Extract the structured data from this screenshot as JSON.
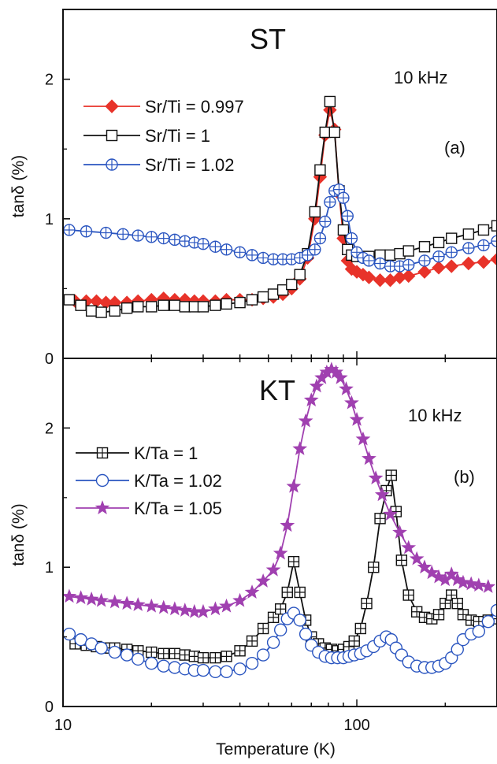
{
  "figure": {
    "xlabel": "Temperature (K)",
    "x_tick_labels": [
      "10",
      "100"
    ]
  },
  "chart_data": [
    {
      "type": "line",
      "panel": "(a)",
      "title": "ST",
      "annotation": "10 kHz",
      "ylabel": "tanδ (%)",
      "xscale": "log",
      "xlim": [
        10,
        300
      ],
      "ylim": [
        0,
        2.5
      ],
      "y_tick_labels": [
        "0",
        "1",
        "2"
      ],
      "y_ticks": [
        0,
        1,
        2
      ],
      "legend_position": "upper-left",
      "series": [
        {
          "name": "Sr/Ti = 0.997",
          "color": "#e8332a",
          "marker": "diamond-filled",
          "x": [
            11,
            12,
            13,
            14,
            15,
            16.5,
            18,
            20,
            22,
            24,
            26,
            28,
            30,
            33,
            36,
            40,
            44,
            48,
            52,
            56,
            60,
            64,
            68,
            72,
            75,
            78,
            81,
            84,
            87,
            90,
            93,
            96,
            100,
            105,
            110,
            120,
            130,
            140,
            150,
            170,
            190,
            210,
            240,
            270,
            300
          ],
          "y": [
            0.41,
            0.41,
            0.41,
            0.4,
            0.4,
            0.4,
            0.41,
            0.42,
            0.43,
            0.42,
            0.42,
            0.41,
            0.41,
            0.41,
            0.42,
            0.42,
            0.42,
            0.43,
            0.44,
            0.46,
            0.5,
            0.57,
            0.72,
            1.0,
            1.3,
            1.6,
            1.78,
            1.64,
            1.18,
            0.86,
            0.7,
            0.64,
            0.62,
            0.6,
            0.58,
            0.56,
            0.56,
            0.58,
            0.59,
            0.62,
            0.65,
            0.66,
            0.68,
            0.69,
            0.71
          ]
        },
        {
          "name": "Sr/Ti = 1",
          "color": "#111111",
          "marker": "square-open",
          "x": [
            10.5,
            11.5,
            12.5,
            13.5,
            15,
            16.5,
            18,
            20,
            22,
            24,
            26,
            28,
            30,
            33,
            36,
            40,
            44,
            48,
            52,
            56,
            60,
            64,
            68,
            72,
            75,
            78,
            81,
            84,
            87,
            90,
            93,
            96,
            100,
            105,
            110,
            120,
            130,
            140,
            150,
            170,
            190,
            210,
            240,
            270,
            300
          ],
          "y": [
            0.42,
            0.38,
            0.34,
            0.33,
            0.34,
            0.36,
            0.37,
            0.37,
            0.38,
            0.38,
            0.37,
            0.37,
            0.37,
            0.38,
            0.39,
            0.4,
            0.42,
            0.44,
            0.46,
            0.49,
            0.53,
            0.6,
            0.75,
            1.05,
            1.35,
            1.62,
            1.84,
            1.62,
            1.2,
            0.92,
            0.78,
            0.74,
            0.73,
            0.73,
            0.73,
            0.74,
            0.74,
            0.75,
            0.77,
            0.8,
            0.83,
            0.86,
            0.89,
            0.92,
            0.95
          ]
        },
        {
          "name": "Sr/Ti = 1.02",
          "color": "#2a55c0",
          "marker": "circle-plus",
          "x": [
            10.5,
            12,
            14,
            16,
            18,
            20,
            22,
            24,
            26,
            28,
            30,
            33,
            36,
            40,
            44,
            48,
            52,
            56,
            60,
            64,
            68,
            72,
            75,
            78,
            81,
            84,
            87,
            90,
            93,
            96,
            100,
            105,
            110,
            120,
            130,
            140,
            150,
            170,
            190,
            210,
            240,
            270,
            300
          ],
          "y": [
            0.92,
            0.91,
            0.9,
            0.89,
            0.88,
            0.87,
            0.86,
            0.85,
            0.84,
            0.83,
            0.82,
            0.8,
            0.78,
            0.76,
            0.74,
            0.72,
            0.71,
            0.71,
            0.71,
            0.72,
            0.74,
            0.78,
            0.86,
            0.98,
            1.12,
            1.2,
            1.21,
            1.15,
            1.02,
            0.86,
            0.76,
            0.72,
            0.7,
            0.68,
            0.66,
            0.66,
            0.67,
            0.7,
            0.73,
            0.76,
            0.79,
            0.81,
            0.84
          ]
        }
      ]
    },
    {
      "type": "line",
      "panel": "(b)",
      "title": "KT",
      "annotation": "10 kHz",
      "ylabel": "tanδ (%)",
      "xscale": "log",
      "xlim": [
        10,
        300
      ],
      "ylim": [
        0,
        2.5
      ],
      "y_tick_labels": [
        "0",
        "1",
        "2"
      ],
      "y_ticks": [
        0,
        1,
        2
      ],
      "legend_position": "upper-left",
      "series": [
        {
          "name": "K/Ta = 1",
          "color": "#111111",
          "marker": "square-plus",
          "x": [
            11,
            12,
            13,
            14,
            15,
            16.5,
            18,
            20,
            22,
            24,
            26,
            28,
            30,
            33,
            36,
            40,
            44,
            48,
            52,
            55,
            58,
            61,
            64,
            67,
            70,
            74,
            78,
            82,
            86,
            90,
            94,
            98,
            103,
            108,
            114,
            120,
            126,
            131,
            136,
            142,
            150,
            160,
            170,
            180,
            190,
            200,
            210,
            220,
            230,
            245,
            260,
            280,
            300
          ],
          "y": [
            0.45,
            0.44,
            0.43,
            0.42,
            0.42,
            0.41,
            0.4,
            0.39,
            0.38,
            0.38,
            0.37,
            0.36,
            0.35,
            0.35,
            0.36,
            0.4,
            0.47,
            0.56,
            0.64,
            0.7,
            0.82,
            1.04,
            0.82,
            0.62,
            0.5,
            0.45,
            0.42,
            0.41,
            0.4,
            0.41,
            0.43,
            0.47,
            0.56,
            0.74,
            1.0,
            1.35,
            1.55,
            1.66,
            1.4,
            1.05,
            0.8,
            0.68,
            0.64,
            0.63,
            0.66,
            0.74,
            0.8,
            0.74,
            0.66,
            0.62,
            0.61,
            0.62,
            0.63
          ]
        },
        {
          "name": "K/Ta = 1.02",
          "color": "#2a55c0",
          "marker": "circle-open",
          "x": [
            10.5,
            11.5,
            12.5,
            13.5,
            15,
            16.5,
            18,
            20,
            22,
            24,
            26,
            28,
            30,
            33,
            36,
            40,
            44,
            48,
            52,
            55,
            58,
            61,
            64,
            67,
            70,
            74,
            78,
            82,
            86,
            90,
            94,
            98,
            103,
            108,
            114,
            120,
            126,
            131,
            136,
            142,
            150,
            160,
            170,
            180,
            190,
            200,
            210,
            220,
            230,
            245,
            260,
            280,
            300
          ],
          "y": [
            0.52,
            0.48,
            0.45,
            0.42,
            0.39,
            0.37,
            0.34,
            0.31,
            0.29,
            0.28,
            0.27,
            0.26,
            0.26,
            0.25,
            0.25,
            0.27,
            0.31,
            0.37,
            0.46,
            0.55,
            0.63,
            0.67,
            0.62,
            0.52,
            0.44,
            0.39,
            0.36,
            0.35,
            0.35,
            0.35,
            0.36,
            0.37,
            0.38,
            0.4,
            0.43,
            0.47,
            0.5,
            0.48,
            0.42,
            0.37,
            0.32,
            0.29,
            0.28,
            0.28,
            0.29,
            0.31,
            0.35,
            0.41,
            0.48,
            0.52,
            0.54,
            0.61,
            0.69
          ]
        },
        {
          "name": "K/Ta = 1.05",
          "color": "#a040b0",
          "marker": "star-filled",
          "x": [
            10.5,
            11.5,
            12.5,
            13.5,
            15,
            16.5,
            18,
            20,
            22,
            24,
            26,
            28,
            30,
            33,
            36,
            40,
            44,
            48,
            52,
            55,
            58,
            61,
            64,
            67,
            70,
            73,
            76,
            79,
            82,
            85,
            88,
            92,
            96,
            100,
            105,
            110,
            116,
            122,
            130,
            140,
            150,
            160,
            170,
            180,
            190,
            200,
            210,
            220,
            230,
            245,
            260,
            280
          ],
          "y": [
            0.79,
            0.78,
            0.77,
            0.76,
            0.75,
            0.74,
            0.73,
            0.72,
            0.71,
            0.7,
            0.69,
            0.68,
            0.68,
            0.7,
            0.72,
            0.76,
            0.82,
            0.9,
            0.98,
            1.1,
            1.3,
            1.58,
            1.85,
            2.05,
            2.2,
            2.3,
            2.36,
            2.4,
            2.42,
            2.4,
            2.36,
            2.28,
            2.18,
            2.06,
            1.92,
            1.78,
            1.64,
            1.52,
            1.38,
            1.25,
            1.14,
            1.06,
            1.0,
            0.96,
            0.93,
            0.91,
            0.95,
            0.91,
            0.89,
            0.88,
            0.87,
            0.86
          ]
        }
      ]
    }
  ]
}
